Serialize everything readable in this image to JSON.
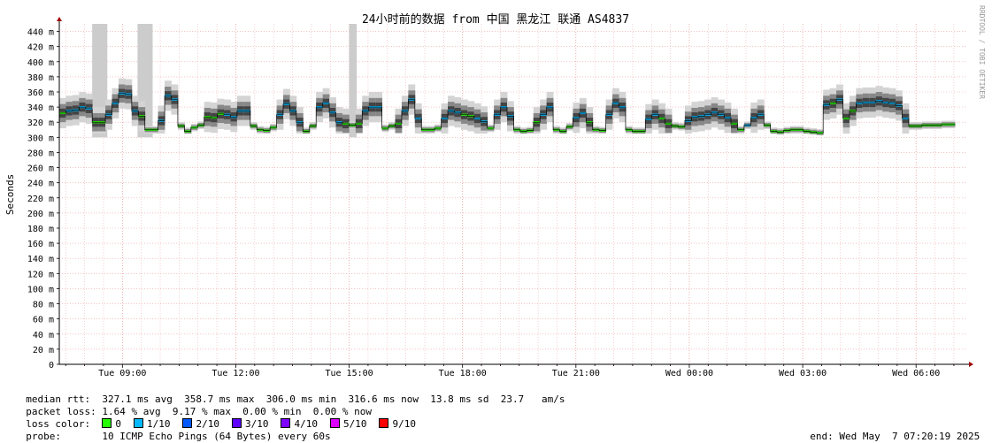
{
  "chart_data": {
    "type": "line",
    "title": "24小时前的数据 from 中国 黑龙江 联通 AS4837",
    "ylabel": "Seconds",
    "watermark": "RRDTOOL / TOBI OETIKER",
    "ylim": [
      0,
      450
    ],
    "yticks": [
      "0",
      "20 m",
      "40 m",
      "60 m",
      "80 m",
      "100 m",
      "120 m",
      "140 m",
      "160 m",
      "180 m",
      "200 m",
      "220 m",
      "240 m",
      "260 m",
      "280 m",
      "300 m",
      "320 m",
      "340 m",
      "360 m",
      "380 m",
      "400 m",
      "420 m",
      "440 m"
    ],
    "xlim_hours": [
      7.33,
      31.33
    ],
    "xticks": [
      {
        "label": "Tue 09:00",
        "hour": 9
      },
      {
        "label": "Tue 12:00",
        "hour": 12
      },
      {
        "label": "Tue 15:00",
        "hour": 15
      },
      {
        "label": "Tue 18:00",
        "hour": 18
      },
      {
        "label": "Tue 21:00",
        "hour": 21
      },
      {
        "label": "Wed 00:00",
        "hour": 24
      },
      {
        "label": "Wed 03:00",
        "hour": 27
      },
      {
        "label": "Wed 06:00",
        "hour": 30
      }
    ],
    "grid": true,
    "median_ms": [
      332,
      335,
      336,
      340,
      338,
      320,
      320,
      330,
      345,
      358,
      357,
      335,
      328,
      310,
      310,
      322,
      355,
      350,
      315,
      308,
      313,
      316,
      327,
      326,
      331,
      330,
      327,
      335,
      335,
      315,
      310,
      309,
      313,
      330,
      344,
      335,
      320,
      308,
      315,
      340,
      345,
      333,
      320,
      318,
      316,
      318,
      335,
      340,
      340,
      312,
      315,
      318,
      335,
      350,
      325,
      310,
      310,
      312,
      325,
      335,
      333,
      330,
      328,
      325,
      321,
      312,
      330,
      340,
      328,
      310,
      308,
      309,
      320,
      330,
      340,
      310,
      308,
      314,
      326,
      332,
      320,
      310,
      309,
      330,
      345,
      340,
      310,
      308,
      308,
      324,
      330,
      325,
      318,
      315,
      314,
      322,
      327,
      328,
      330,
      333,
      330,
      326,
      318,
      310,
      316,
      326,
      330,
      316,
      308,
      307,
      309,
      310,
      310,
      308,
      307,
      306,
      343,
      345,
      350,
      325,
      335,
      345,
      346,
      346,
      348,
      346,
      345,
      342,
      325,
      315,
      315,
      316,
      316,
      316,
      317,
      317
    ],
    "loss_color_index": [
      0,
      1,
      1,
      1,
      1,
      0,
      0,
      1,
      1,
      1,
      1,
      1,
      0,
      0,
      0,
      1,
      1,
      1,
      0,
      0,
      0,
      0,
      0,
      0,
      0,
      1,
      1,
      1,
      1,
      0,
      0,
      0,
      0,
      1,
      1,
      1,
      1,
      0,
      0,
      1,
      1,
      1,
      1,
      0,
      0,
      0,
      1,
      1,
      1,
      0,
      0,
      0,
      1,
      1,
      1,
      0,
      0,
      0,
      1,
      1,
      1,
      0,
      0,
      1,
      1,
      0,
      1,
      1,
      1,
      0,
      0,
      0,
      0,
      1,
      1,
      0,
      0,
      0,
      1,
      1,
      0,
      0,
      0,
      1,
      1,
      1,
      0,
      0,
      0,
      1,
      1,
      0,
      0,
      0,
      0,
      1,
      1,
      1,
      1,
      1,
      1,
      1,
      0,
      0,
      1,
      1,
      1,
      0,
      0,
      0,
      0,
      0,
      0,
      0,
      0,
      0,
      1,
      0,
      1,
      0,
      0,
      1,
      1,
      1,
      1,
      1,
      1,
      1,
      1,
      0,
      0,
      0,
      0,
      0,
      0,
      0
    ],
    "spikes": [
      {
        "hour_start": 8.2,
        "hour_end": 8.6,
        "top_ms": 450
      },
      {
        "hour_start": 9.4,
        "hour_end": 9.8,
        "top_ms": 450
      },
      {
        "hour_start": 15.0,
        "hour_end": 15.2,
        "top_ms": 450
      }
    ]
  },
  "legend": {
    "median_rtt_label": "median rtt:",
    "median_rtt_value": "327.1 ms avg  358.7 ms max  306.0 ms min  316.6 ms now  13.8 ms sd  23.7   am/s",
    "packet_loss_label": "packet loss:",
    "packet_loss_value": "1.64 % avg  9.17 % max  0.00 % min  0.00 % now",
    "loss_color_label": "loss color:",
    "loss_colors": [
      {
        "label": "0",
        "color": "#26ff00"
      },
      {
        "label": "1/10",
        "color": "#00b8ff"
      },
      {
        "label": "2/10",
        "color": "#0059ff"
      },
      {
        "label": "3/10",
        "color": "#5e00ff"
      },
      {
        "label": "4/10",
        "color": "#7e00ff"
      },
      {
        "label": "5/10",
        "color": "#dd00ff"
      },
      {
        "label": "9/10",
        "color": "#ff0000"
      }
    ],
    "probe_label": "probe:",
    "probe_value": "10 ICMP Echo Pings (64 Bytes) every 60s",
    "end_label": "end: Wed May  7 07:20:19 2025"
  }
}
